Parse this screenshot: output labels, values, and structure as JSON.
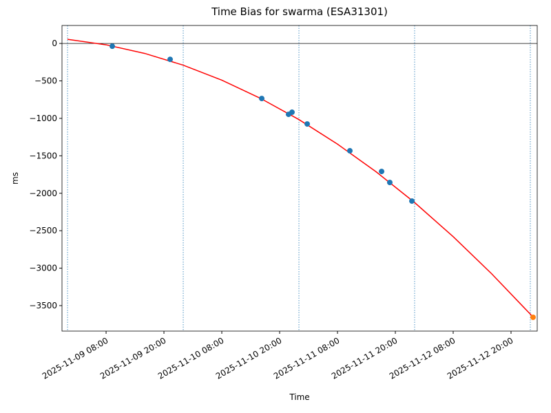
{
  "chart_data": {
    "type": "line",
    "title": "Time Bias for swarma (ESA31301)",
    "x_label": "Time",
    "y_label": "ms",
    "xlim": [
      "2025-11-08 22:51",
      "2025-11-13 01:26"
    ],
    "xticks": [
      "2025-11-09 08:00",
      "2025-11-09 20:00",
      "2025-11-10 08:00",
      "2025-11-10 20:00",
      "2025-11-11 08:00",
      "2025-11-11 20:00",
      "2025-11-12 08:00",
      "2025-11-12 20:00"
    ],
    "ylim": [
      -3840,
      240
    ],
    "yticks": [
      0,
      {
        "value": -500,
        "label": "−500"
      },
      {
        "value": -1000,
        "label": "−1000"
      },
      {
        "value": -1500,
        "label": "−1500"
      },
      {
        "value": -2000,
        "label": "−2000"
      },
      {
        "value": -2500,
        "label": "−2500"
      },
      {
        "value": -3000,
        "label": "−3000"
      },
      {
        "value": -3500,
        "label": "−3500"
      }
    ],
    "hline": 0,
    "vlines": [
      "2025-11-09 00:00",
      "2025-11-10 00:00",
      "2025-11-11 00:00",
      "2025-11-12 00:00",
      "2025-11-13 00:00"
    ],
    "series": [
      {
        "type": "line",
        "color": "#ff0000",
        "x": [
          "2025-11-09 00:00",
          "2025-11-09 08:00",
          "2025-11-09 16:00",
          "2025-11-10 00:00",
          "2025-11-10 08:00",
          "2025-11-10 16:00",
          "2025-11-11 00:00",
          "2025-11-11 08:00",
          "2025-11-11 16:00",
          "2025-11-12 00:00",
          "2025-11-12 08:00",
          "2025-11-12 16:00",
          "2025-11-13 00:00",
          "2025-11-13 00:34"
        ],
        "values": [
          55,
          -18,
          -133,
          -290,
          -490,
          -732,
          -1016,
          -1344,
          -1713,
          -2124,
          -2579,
          -3076,
          -3614,
          -3656
        ]
      },
      {
        "type": "scatter",
        "color": "#1f77b4",
        "x": [
          "2025-11-09 09:17",
          "2025-11-09 21:17",
          "2025-11-10 16:17",
          "2025-11-10 21:51",
          "2025-11-10 22:34",
          "2025-11-11 01:43",
          "2025-11-11 10:34",
          "2025-11-11 17:09",
          "2025-11-11 18:51",
          "2025-11-11 23:26"
        ],
        "values": [
          -37,
          -212,
          -735,
          -946,
          -918,
          -1075,
          -1433,
          -1709,
          -1856,
          -2104
        ]
      },
      {
        "type": "scatter",
        "color": "#ff7f0e",
        "x": [
          "2025-11-13 00:34"
        ],
        "values": [
          -3656
        ]
      }
    ]
  }
}
